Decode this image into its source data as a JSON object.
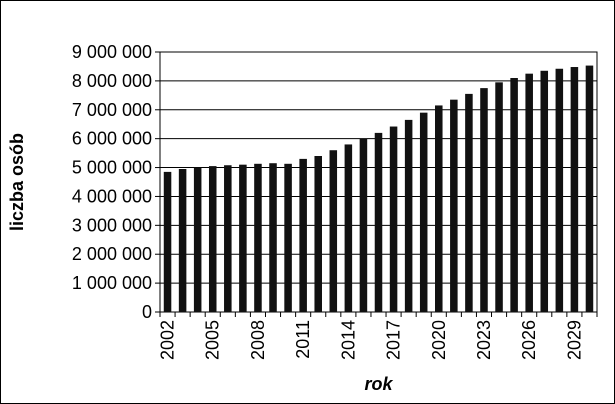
{
  "chart_data": {
    "type": "bar",
    "xlabel": "rok",
    "ylabel": "liczba osób",
    "ylim": [
      0,
      9000000
    ],
    "y_ticks": [
      "0",
      "1 000 000",
      "2 000 000",
      "3 000 000",
      "4 000 000",
      "5 000 000",
      "6 000 000",
      "7 000 000",
      "8 000 000",
      "9 000 000"
    ],
    "x_tick_labels": [
      "2002",
      "2005",
      "2008",
      "2011",
      "2014",
      "2017",
      "2020",
      "2023",
      "2026",
      "2029"
    ],
    "grid": true,
    "categories": [
      "2002",
      "2003",
      "2004",
      "2005",
      "2006",
      "2007",
      "2008",
      "2009",
      "2010",
      "2011",
      "2012",
      "2013",
      "2014",
      "2015",
      "2016",
      "2017",
      "2018",
      "2019",
      "2020",
      "2021",
      "2022",
      "2023",
      "2024",
      "2025",
      "2026",
      "2027",
      "2028",
      "2029",
      "2030"
    ],
    "values": [
      4850000,
      4950000,
      5000000,
      5050000,
      5080000,
      5100000,
      5130000,
      5150000,
      5130000,
      5300000,
      5400000,
      5600000,
      5800000,
      6000000,
      6200000,
      6420000,
      6650000,
      6900000,
      7150000,
      7350000,
      7550000,
      7750000,
      7950000,
      8100000,
      8250000,
      8350000,
      8420000,
      8480000,
      8530000
    ]
  }
}
